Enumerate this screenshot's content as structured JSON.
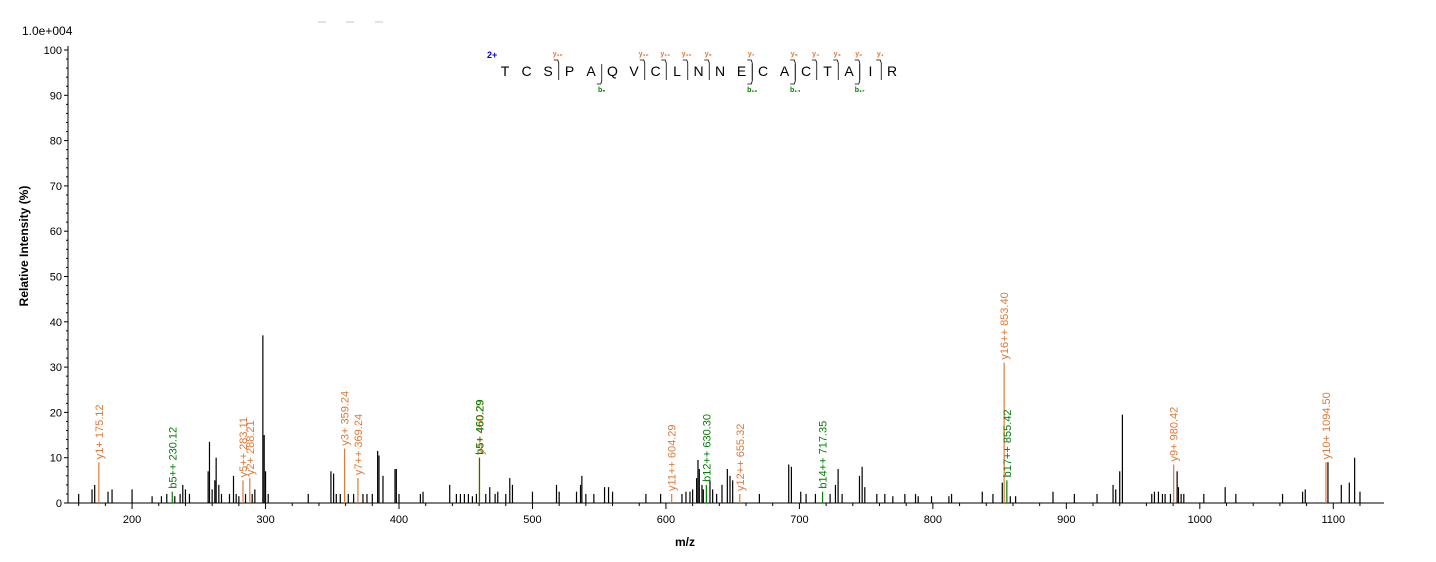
{
  "chart_data": {
    "type": "bar",
    "scale_label": "1.0e+004",
    "ylabel": "Relative  Intensity (%)",
    "xlabel": "m/z",
    "xlim": [
      152,
      1138
    ],
    "ylim": [
      0,
      100
    ],
    "x_ticks": [
      "200",
      "300",
      "400",
      "500",
      "600",
      "700",
      "800",
      "900",
      "1000",
      "1100"
    ],
    "y_ticks": [
      "0",
      "10",
      "20",
      "30",
      "40",
      "50",
      "60",
      "70",
      "80",
      "90",
      "100"
    ],
    "colors": {
      "y_ion": "#e07838",
      "b_ion": "#008000",
      "peak": "#000000",
      "charge": "#0000cc"
    },
    "peptide": {
      "charge": "2+",
      "residues": [
        "T",
        "C",
        "S",
        "P",
        "A",
        "Q",
        "V",
        "C",
        "L",
        "N",
        "N",
        "E",
        "C",
        "A",
        "C",
        "T",
        "A",
        "I",
        "R"
      ],
      "y_ions": [
        {
          "label": "y₁₆",
          "after": 3
        },
        {
          "label": "y₁₂",
          "after": 7
        },
        {
          "label": "y₁₁",
          "after": 8
        },
        {
          "label": "y₁₀",
          "after": 9
        },
        {
          "label": "y₉",
          "after": 10
        },
        {
          "label": "y₇",
          "after": 12
        },
        {
          "label": "y₅",
          "after": 14
        },
        {
          "label": "y₄",
          "after": 15
        },
        {
          "label": "y₃",
          "after": 16
        },
        {
          "label": "y₂",
          "after": 17
        },
        {
          "label": "y₁",
          "after": 18
        }
      ],
      "b_ions": [
        {
          "label": "b₅",
          "after": 5
        },
        {
          "label": "b₁₂",
          "after": 12
        },
        {
          "label": "b₁₄",
          "after": 14
        },
        {
          "label": "b₁₇",
          "after": 17
        }
      ]
    },
    "annotated_peaks": [
      {
        "mz": 175.12,
        "intensity": 9,
        "label": "y1+ 175.12",
        "ion": "y"
      },
      {
        "mz": 230.12,
        "intensity": 2.5,
        "label": "b5++ 230.12",
        "ion": "b"
      },
      {
        "mz": 283.11,
        "intensity": 5,
        "label": "y5++ 283.11",
        "ion": "y"
      },
      {
        "mz": 288.21,
        "intensity": 5.5,
        "label": "y2+ 288.21",
        "ion": "y"
      },
      {
        "mz": 359.24,
        "intensity": 12,
        "label": "y3+ 359.24",
        "ion": "y"
      },
      {
        "mz": 369.24,
        "intensity": 5.5,
        "label": "y7++ 369.24",
        "ion": "y"
      },
      {
        "mz": 460.29,
        "intensity": 10,
        "label": "y4+ 460.29",
        "ion": "y"
      },
      {
        "mz": 460.29,
        "intensity": 10,
        "label": "b5+ 460.29",
        "ion": "b"
      },
      {
        "mz": 604.29,
        "intensity": 2,
        "label": "y11++ 604.29",
        "ion": "y"
      },
      {
        "mz": 630.3,
        "intensity": 4,
        "label": "b12++ 630.30",
        "ion": "b"
      },
      {
        "mz": 655.32,
        "intensity": 2,
        "label": "y12++ 655.32",
        "ion": "y"
      },
      {
        "mz": 717.35,
        "intensity": 2.5,
        "label": "b14++ 717.35",
        "ion": "b"
      },
      {
        "mz": 853.4,
        "intensity": 31,
        "label": "y16++ 853.40",
        "ion": "y"
      },
      {
        "mz": 855.42,
        "intensity": 5,
        "label": "b17++ 855.42",
        "ion": "b"
      },
      {
        "mz": 980.42,
        "intensity": 8.5,
        "label": "y9+ 980.42",
        "ion": "y"
      },
      {
        "mz": 1094.5,
        "intensity": 9,
        "label": "y10+ 1094.50",
        "ion": "y"
      }
    ],
    "peaks": [
      [
        160,
        2
      ],
      [
        170,
        3
      ],
      [
        172,
        4
      ],
      [
        182,
        2.5
      ],
      [
        185,
        3
      ],
      [
        200,
        3
      ],
      [
        215,
        1.5
      ],
      [
        222,
        1.5
      ],
      [
        226,
        2
      ],
      [
        232,
        1.5
      ],
      [
        236,
        2
      ],
      [
        238,
        4
      ],
      [
        240,
        3
      ],
      [
        243,
        2
      ],
      [
        257,
        7
      ],
      [
        258,
        13.5
      ],
      [
        260,
        3
      ],
      [
        262,
        5
      ],
      [
        263,
        10
      ],
      [
        265,
        4
      ],
      [
        267,
        2
      ],
      [
        273,
        2
      ],
      [
        276,
        6
      ],
      [
        278,
        2
      ],
      [
        280,
        1.5
      ],
      [
        285,
        2
      ],
      [
        290,
        2
      ],
      [
        292,
        3
      ],
      [
        298,
        37
      ],
      [
        299,
        15
      ],
      [
        300,
        7
      ],
      [
        302,
        2
      ],
      [
        332,
        2
      ],
      [
        349,
        7
      ],
      [
        351,
        6.5
      ],
      [
        353,
        2
      ],
      [
        356,
        2
      ],
      [
        362,
        2
      ],
      [
        366,
        2
      ],
      [
        373,
        2
      ],
      [
        376,
        2
      ],
      [
        380,
        2
      ],
      [
        384,
        11.5
      ],
      [
        385,
        10.5
      ],
      [
        388,
        6
      ],
      [
        397,
        7.5
      ],
      [
        398,
        7.5
      ],
      [
        400,
        2
      ],
      [
        416,
        2
      ],
      [
        418,
        2.5
      ],
      [
        438,
        4
      ],
      [
        443,
        2
      ],
      [
        446,
        2
      ],
      [
        449,
        2
      ],
      [
        452,
        2
      ],
      [
        455,
        1.5
      ],
      [
        458,
        2
      ],
      [
        465,
        2
      ],
      [
        468,
        3.5
      ],
      [
        472,
        2
      ],
      [
        474,
        2.5
      ],
      [
        480,
        2
      ],
      [
        483,
        5.5
      ],
      [
        485,
        4
      ],
      [
        500,
        2.5
      ],
      [
        518,
        4
      ],
      [
        520,
        2.5
      ],
      [
        533,
        2.5
      ],
      [
        536,
        4
      ],
      [
        537,
        6
      ],
      [
        540,
        2
      ],
      [
        546,
        2
      ],
      [
        554,
        3.5
      ],
      [
        557,
        3.5
      ],
      [
        560,
        2.5
      ],
      [
        585,
        2
      ],
      [
        596,
        2
      ],
      [
        612,
        2
      ],
      [
        615,
        2.5
      ],
      [
        618,
        2.5
      ],
      [
        620,
        3
      ],
      [
        623,
        5.5
      ],
      [
        624,
        9.5
      ],
      [
        625,
        7.5
      ],
      [
        627,
        4
      ],
      [
        628,
        3
      ],
      [
        633,
        5
      ],
      [
        635,
        3
      ],
      [
        638,
        2
      ],
      [
        642,
        4
      ],
      [
        646,
        7.5
      ],
      [
        648,
        6
      ],
      [
        650,
        5
      ],
      [
        670,
        2
      ],
      [
        692,
        8.5
      ],
      [
        694,
        8
      ],
      [
        701,
        2.5
      ],
      [
        705,
        2
      ],
      [
        712,
        2
      ],
      [
        723,
        2
      ],
      [
        727,
        4
      ],
      [
        729,
        7.5
      ],
      [
        732,
        2
      ],
      [
        745,
        6
      ],
      [
        747,
        8
      ],
      [
        749,
        3.5
      ],
      [
        758,
        2
      ],
      [
        764,
        2
      ],
      [
        770,
        1.5
      ],
      [
        779,
        2
      ],
      [
        787,
        2
      ],
      [
        789,
        1.5
      ],
      [
        799,
        1.5
      ],
      [
        812,
        1.5
      ],
      [
        814,
        2
      ],
      [
        837,
        2.5
      ],
      [
        845,
        2
      ],
      [
        852,
        4.5
      ],
      [
        858,
        1.5
      ],
      [
        862,
        1.5
      ],
      [
        890,
        2.5
      ],
      [
        906,
        2
      ],
      [
        923,
        2
      ],
      [
        935,
        4
      ],
      [
        937,
        3
      ],
      [
        940,
        7
      ],
      [
        942,
        19.5
      ],
      [
        964,
        2
      ],
      [
        966,
        2.5
      ],
      [
        969,
        2.5
      ],
      [
        972,
        2
      ],
      [
        974,
        2
      ],
      [
        978,
        2
      ],
      [
        983,
        7
      ],
      [
        984,
        3.5
      ],
      [
        986,
        2
      ],
      [
        988,
        2
      ],
      [
        1003,
        2
      ],
      [
        1019,
        3.5
      ],
      [
        1027,
        2
      ],
      [
        1062,
        2
      ],
      [
        1077,
        2.5
      ],
      [
        1079,
        3
      ],
      [
        1096,
        9
      ],
      [
        1106,
        4
      ],
      [
        1112,
        4.5
      ],
      [
        1116,
        10
      ],
      [
        1120,
        2.5
      ]
    ]
  }
}
